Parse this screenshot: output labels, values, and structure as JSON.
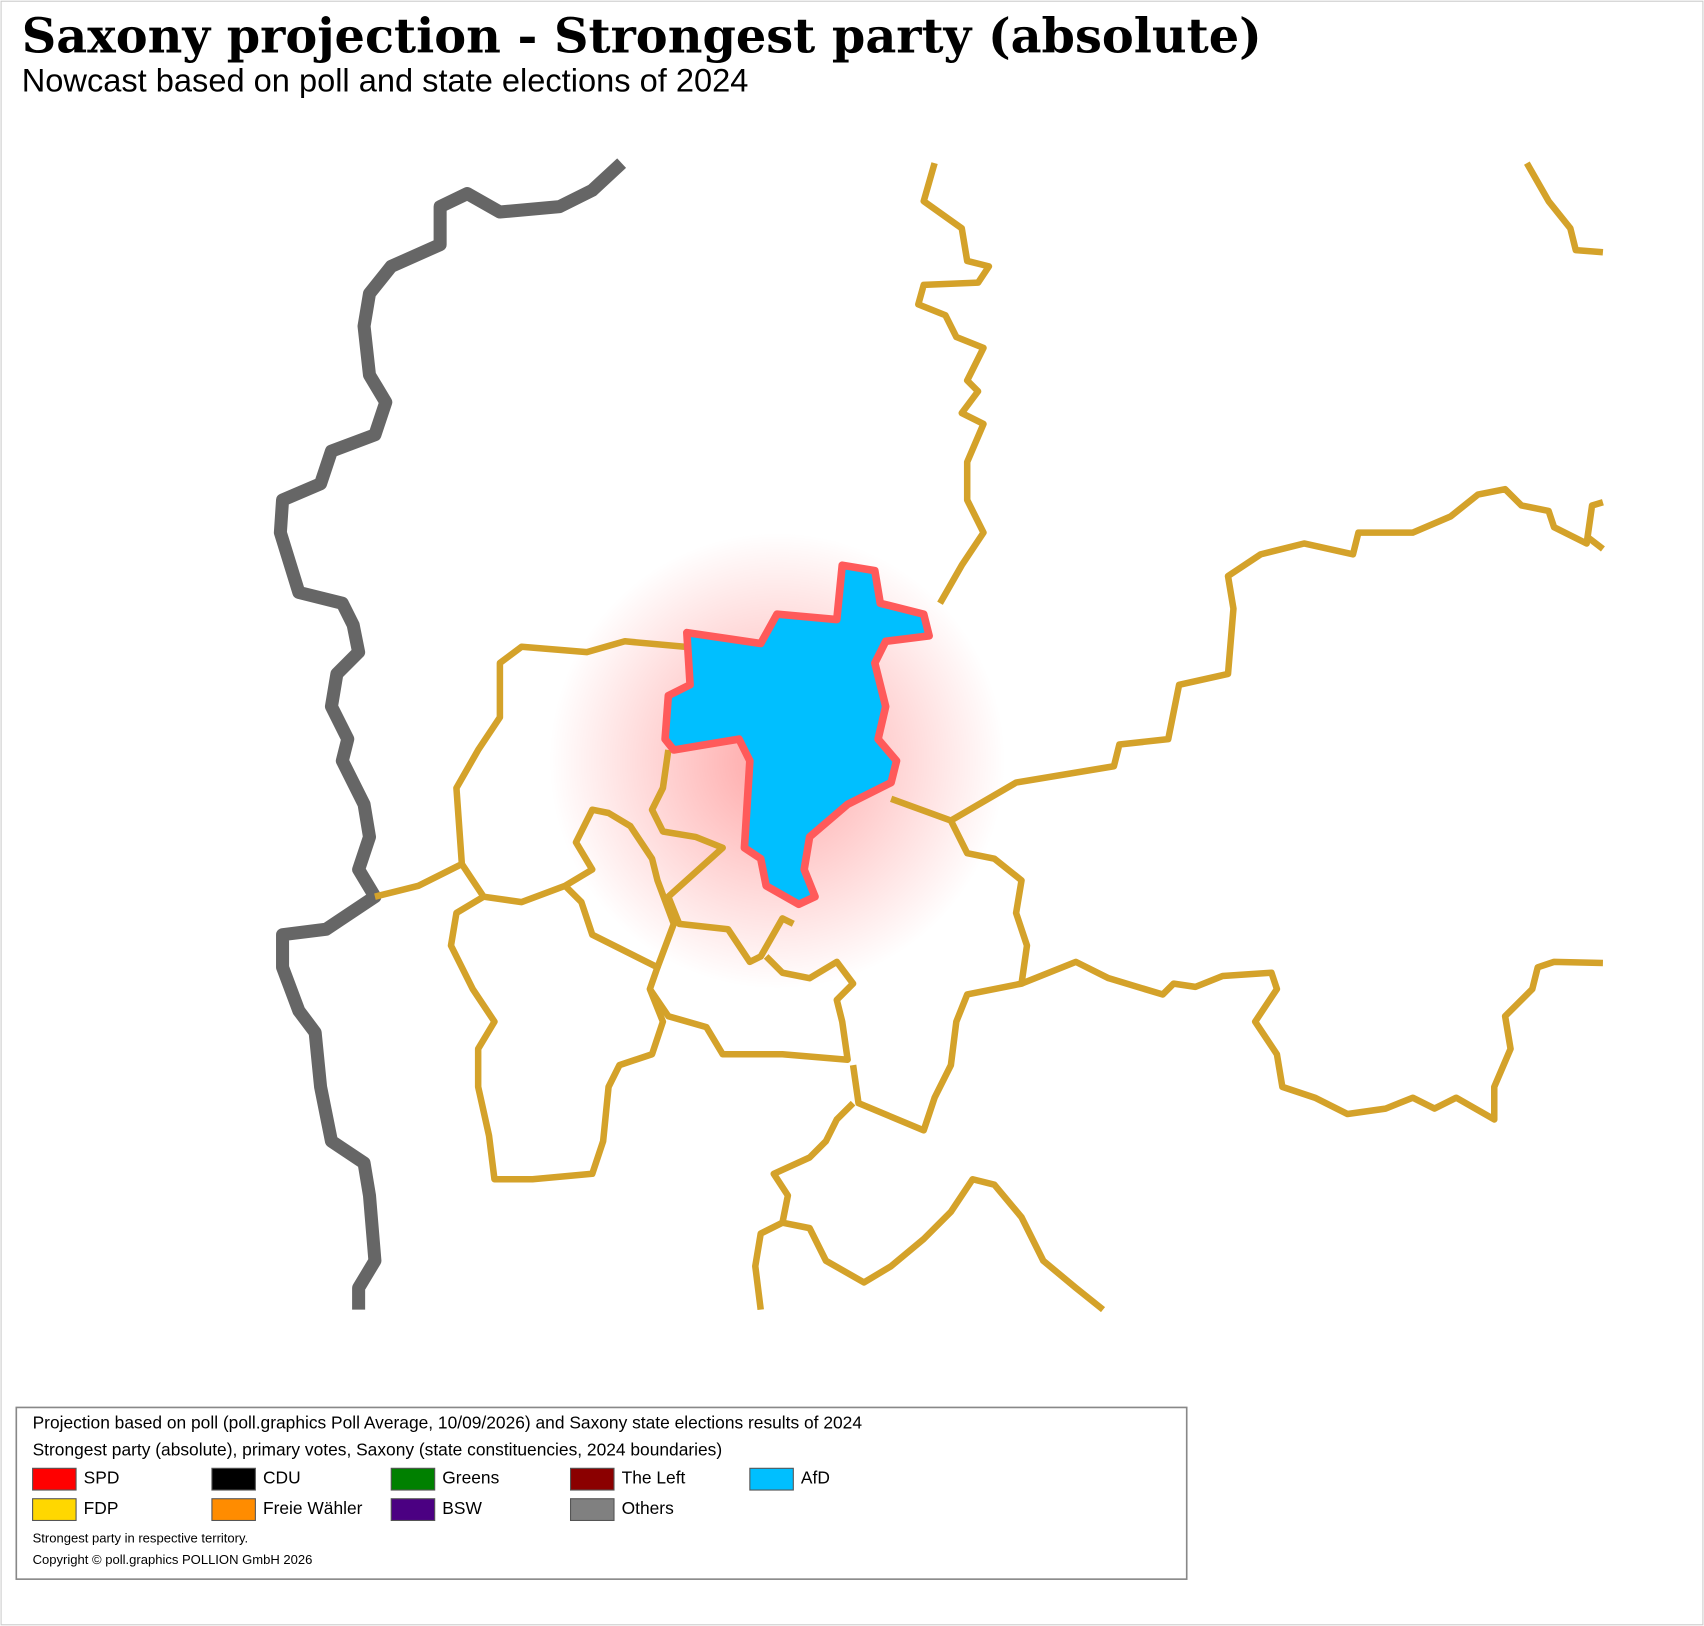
{
  "header": {
    "title": "Saxony projection - Strongest party (absolute)",
    "subtitle": "Nowcast based on poll and state elections of 2024"
  },
  "legend": {
    "lines": [
      "Projection based on poll (poll.graphics Poll Average, 10/09/2026) and Saxony state elections results of 2024",
      "Strongest party (absolute), primary votes, Saxony (state constituencies, 2024 boundaries)"
    ],
    "items": [
      {
        "name": "SPD",
        "color": "#ff0000"
      },
      {
        "name": "CDU",
        "color": "#000000"
      },
      {
        "name": "Greens",
        "color": "#008000"
      },
      {
        "name": "The Left",
        "color": "#8b0000"
      },
      {
        "name": "AfD",
        "color": "#00bfff"
      },
      {
        "name": "FDP",
        "color": "#ffd700"
      },
      {
        "name": "Freie Wähler",
        "color": "#ff8c00"
      },
      {
        "name": "BSW",
        "color": "#4b0082"
      },
      {
        "name": "Others",
        "color": "#808080"
      }
    ],
    "notes": [
      "Strongest party in respective territory.",
      "Copyright © poll.graphics POLLION GmbH 2026"
    ]
  }
}
